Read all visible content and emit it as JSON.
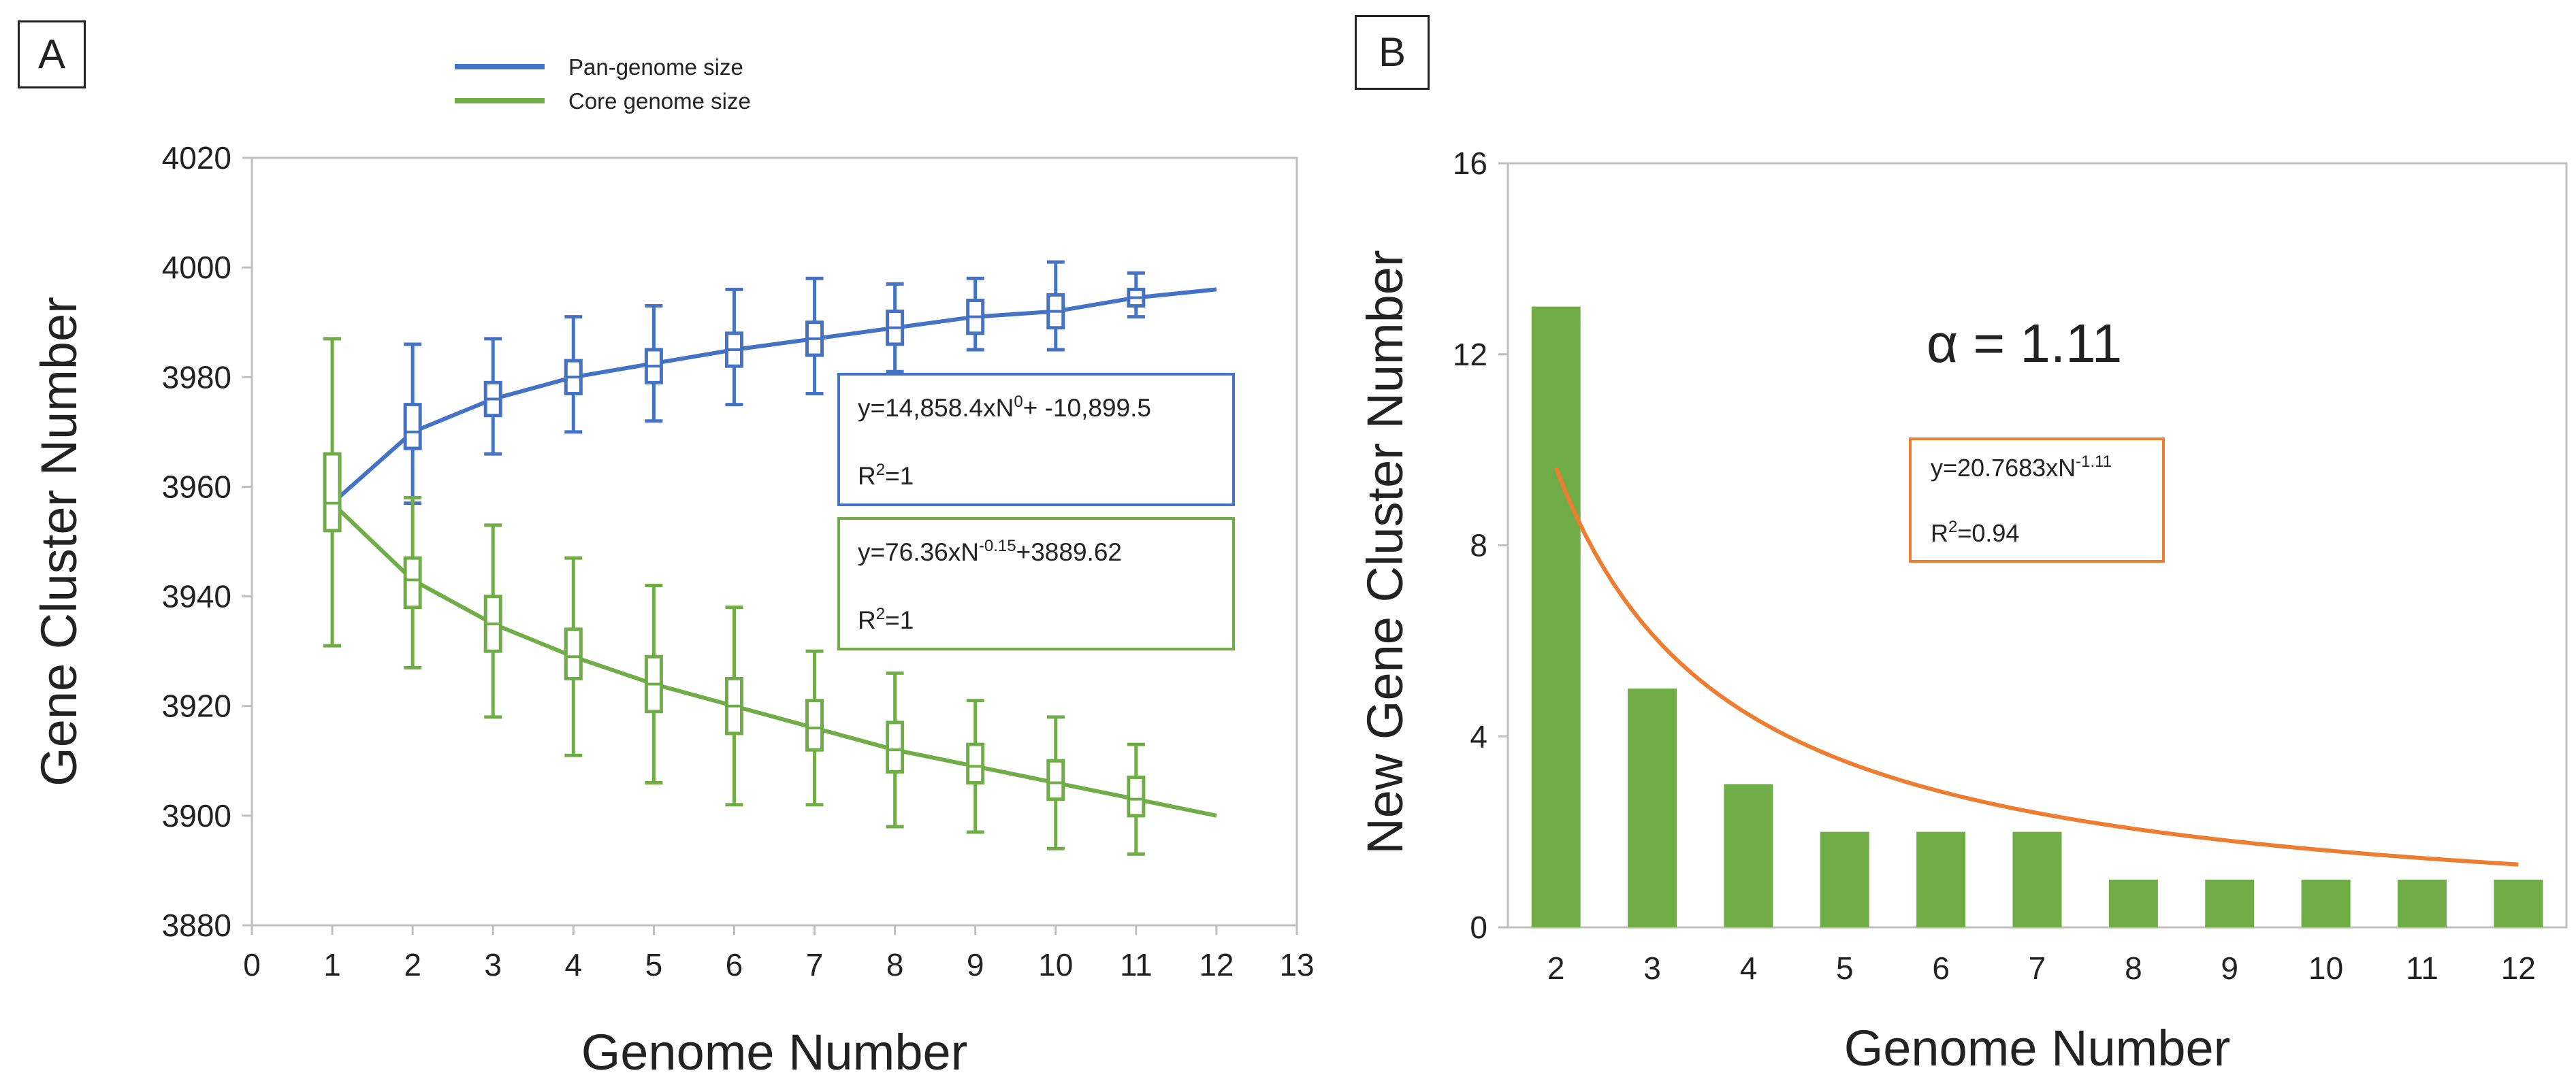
{
  "panel_a_label": "A",
  "panel_b_label": "B",
  "colors": {
    "pan": "#4472c4",
    "core": "#70ad47",
    "bar": "#70ad47",
    "fit": "#ed7d31",
    "axis": "#bfbfbf",
    "text": "#222222"
  },
  "chart_data": [
    {
      "type": "line",
      "panel": "A",
      "title": "",
      "xlabel": "Genome Number",
      "ylabel": "Gene Cluster Number",
      "xlim": [
        0,
        13
      ],
      "ylim": [
        3880,
        4020
      ],
      "x_ticks": [
        "0",
        "1",
        "2",
        "3",
        "4",
        "5",
        "6",
        "7",
        "8",
        "9",
        "10",
        "11",
        "12",
        "13"
      ],
      "y_ticks": [
        "3880",
        "3900",
        "3920",
        "3940",
        "3960",
        "3980",
        "4000",
        "4020"
      ],
      "legend": [
        "Pan-genome size",
        "Core genome size"
      ],
      "legend_position": "top",
      "series": [
        {
          "name": "Pan-genome size",
          "fit_curve": {
            "x": [
              1,
              2,
              3,
              4,
              5,
              6,
              7,
              8,
              9,
              10,
              11,
              12
            ],
            "y": [
              3957,
              3970,
              3976,
              3980,
              3982.5,
              3985,
              3987,
              3989,
              3991,
              3992,
              3994.5,
              3996
            ]
          },
          "box_points": [
            {
              "x": 2,
              "q1": 3967,
              "q3": 3975,
              "median": 3970,
              "min": 3957,
              "max": 3986
            },
            {
              "x": 3,
              "q1": 3973,
              "q3": 3979,
              "median": 3976,
              "min": 3966,
              "max": 3987
            },
            {
              "x": 4,
              "q1": 3977,
              "q3": 3983,
              "median": 3980,
              "min": 3970,
              "max": 3991
            },
            {
              "x": 5,
              "q1": 3979,
              "q3": 3985,
              "median": 3982,
              "min": 3972,
              "max": 3993
            },
            {
              "x": 6,
              "q1": 3982,
              "q3": 3988,
              "median": 3985,
              "min": 3975,
              "max": 3996
            },
            {
              "x": 7,
              "q1": 3984,
              "q3": 3990,
              "median": 3987,
              "min": 3977,
              "max": 3998
            },
            {
              "x": 8,
              "q1": 3986,
              "q3": 3992,
              "median": 3989,
              "min": 3981,
              "max": 3997
            },
            {
              "x": 9,
              "q1": 3988,
              "q3": 3994,
              "median": 3991,
              "min": 3985,
              "max": 3998
            },
            {
              "x": 10,
              "q1": 3989,
              "q3": 3995,
              "median": 3992,
              "min": 3985,
              "max": 4001
            },
            {
              "x": 11,
              "q1": 3993,
              "q3": 3996,
              "median": 3994.5,
              "min": 3991,
              "max": 3999
            }
          ]
        },
        {
          "name": "Core genome size",
          "fit_curve": {
            "x": [
              1,
              2,
              3,
              4,
              5,
              6,
              7,
              8,
              9,
              10,
              11,
              12
            ],
            "y": [
              3957,
              3943,
              3935,
              3929,
              3924,
              3920,
              3916,
              3912,
              3909,
              3906,
              3903,
              3900
            ]
          },
          "box_points": [
            {
              "x": 1,
              "q1": 3952,
              "q3": 3966,
              "median": 3957,
              "min": 3931,
              "max": 3987
            },
            {
              "x": 2,
              "q1": 3938,
              "q3": 3947,
              "median": 3943,
              "min": 3927,
              "max": 3958
            },
            {
              "x": 3,
              "q1": 3930,
              "q3": 3940,
              "median": 3935,
              "min": 3918,
              "max": 3953
            },
            {
              "x": 4,
              "q1": 3925,
              "q3": 3934,
              "median": 3929,
              "min": 3911,
              "max": 3947
            },
            {
              "x": 5,
              "q1": 3919,
              "q3": 3929,
              "median": 3924,
              "min": 3906,
              "max": 3942
            },
            {
              "x": 6,
              "q1": 3915,
              "q3": 3925,
              "median": 3920,
              "min": 3902,
              "max": 3938
            },
            {
              "x": 7,
              "q1": 3912,
              "q3": 3921,
              "median": 3916,
              "min": 3902,
              "max": 3930
            },
            {
              "x": 8,
              "q1": 3908,
              "q3": 3917,
              "median": 3912,
              "min": 3898,
              "max": 3926
            },
            {
              "x": 9,
              "q1": 3906,
              "q3": 3913,
              "median": 3909,
              "min": 3897,
              "max": 3921
            },
            {
              "x": 10,
              "q1": 3903,
              "q3": 3910,
              "median": 3906,
              "min": 3894,
              "max": 3918
            },
            {
              "x": 11,
              "q1": 3900,
              "q3": 3907,
              "median": 3903,
              "min": 3893,
              "max": 3913
            }
          ]
        }
      ],
      "annotations": [
        {
          "series": "Pan-genome size",
          "equation_base": "y=14,858.4xN",
          "equation_exp": "0",
          "equation_tail": "+ -10,899.5",
          "r2_base": "R",
          "r2_exp": "2",
          "r2_tail": "=1"
        },
        {
          "series": "Core genome size",
          "equation_base": "y=76.36xN",
          "equation_exp": "-0.15",
          "equation_tail": "+3889.62",
          "r2_base": "R",
          "r2_exp": "2",
          "r2_tail": "=1"
        }
      ]
    },
    {
      "type": "bar",
      "panel": "B",
      "title": "",
      "xlabel": "Genome Number",
      "ylabel": "New Gene Cluster Number",
      "categories": [
        "2",
        "3",
        "4",
        "5",
        "6",
        "7",
        "8",
        "9",
        "10",
        "11",
        "12"
      ],
      "values": [
        13,
        5,
        3,
        2,
        2,
        2,
        1,
        1,
        1,
        1,
        1
      ],
      "ylim": [
        0,
        16
      ],
      "y_ticks": [
        "0",
        "4",
        "8",
        "12",
        "16"
      ],
      "fit": {
        "type": "power",
        "coefficient": 20.7683,
        "exponent": -1.11
      },
      "alpha_label": "α = 1.11",
      "annotation": {
        "equation_base": "y=20.7683xN",
        "equation_exp": "-1.11",
        "r2_base": "R",
        "r2_exp": "2",
        "r2_tail": "=0.94"
      }
    }
  ]
}
